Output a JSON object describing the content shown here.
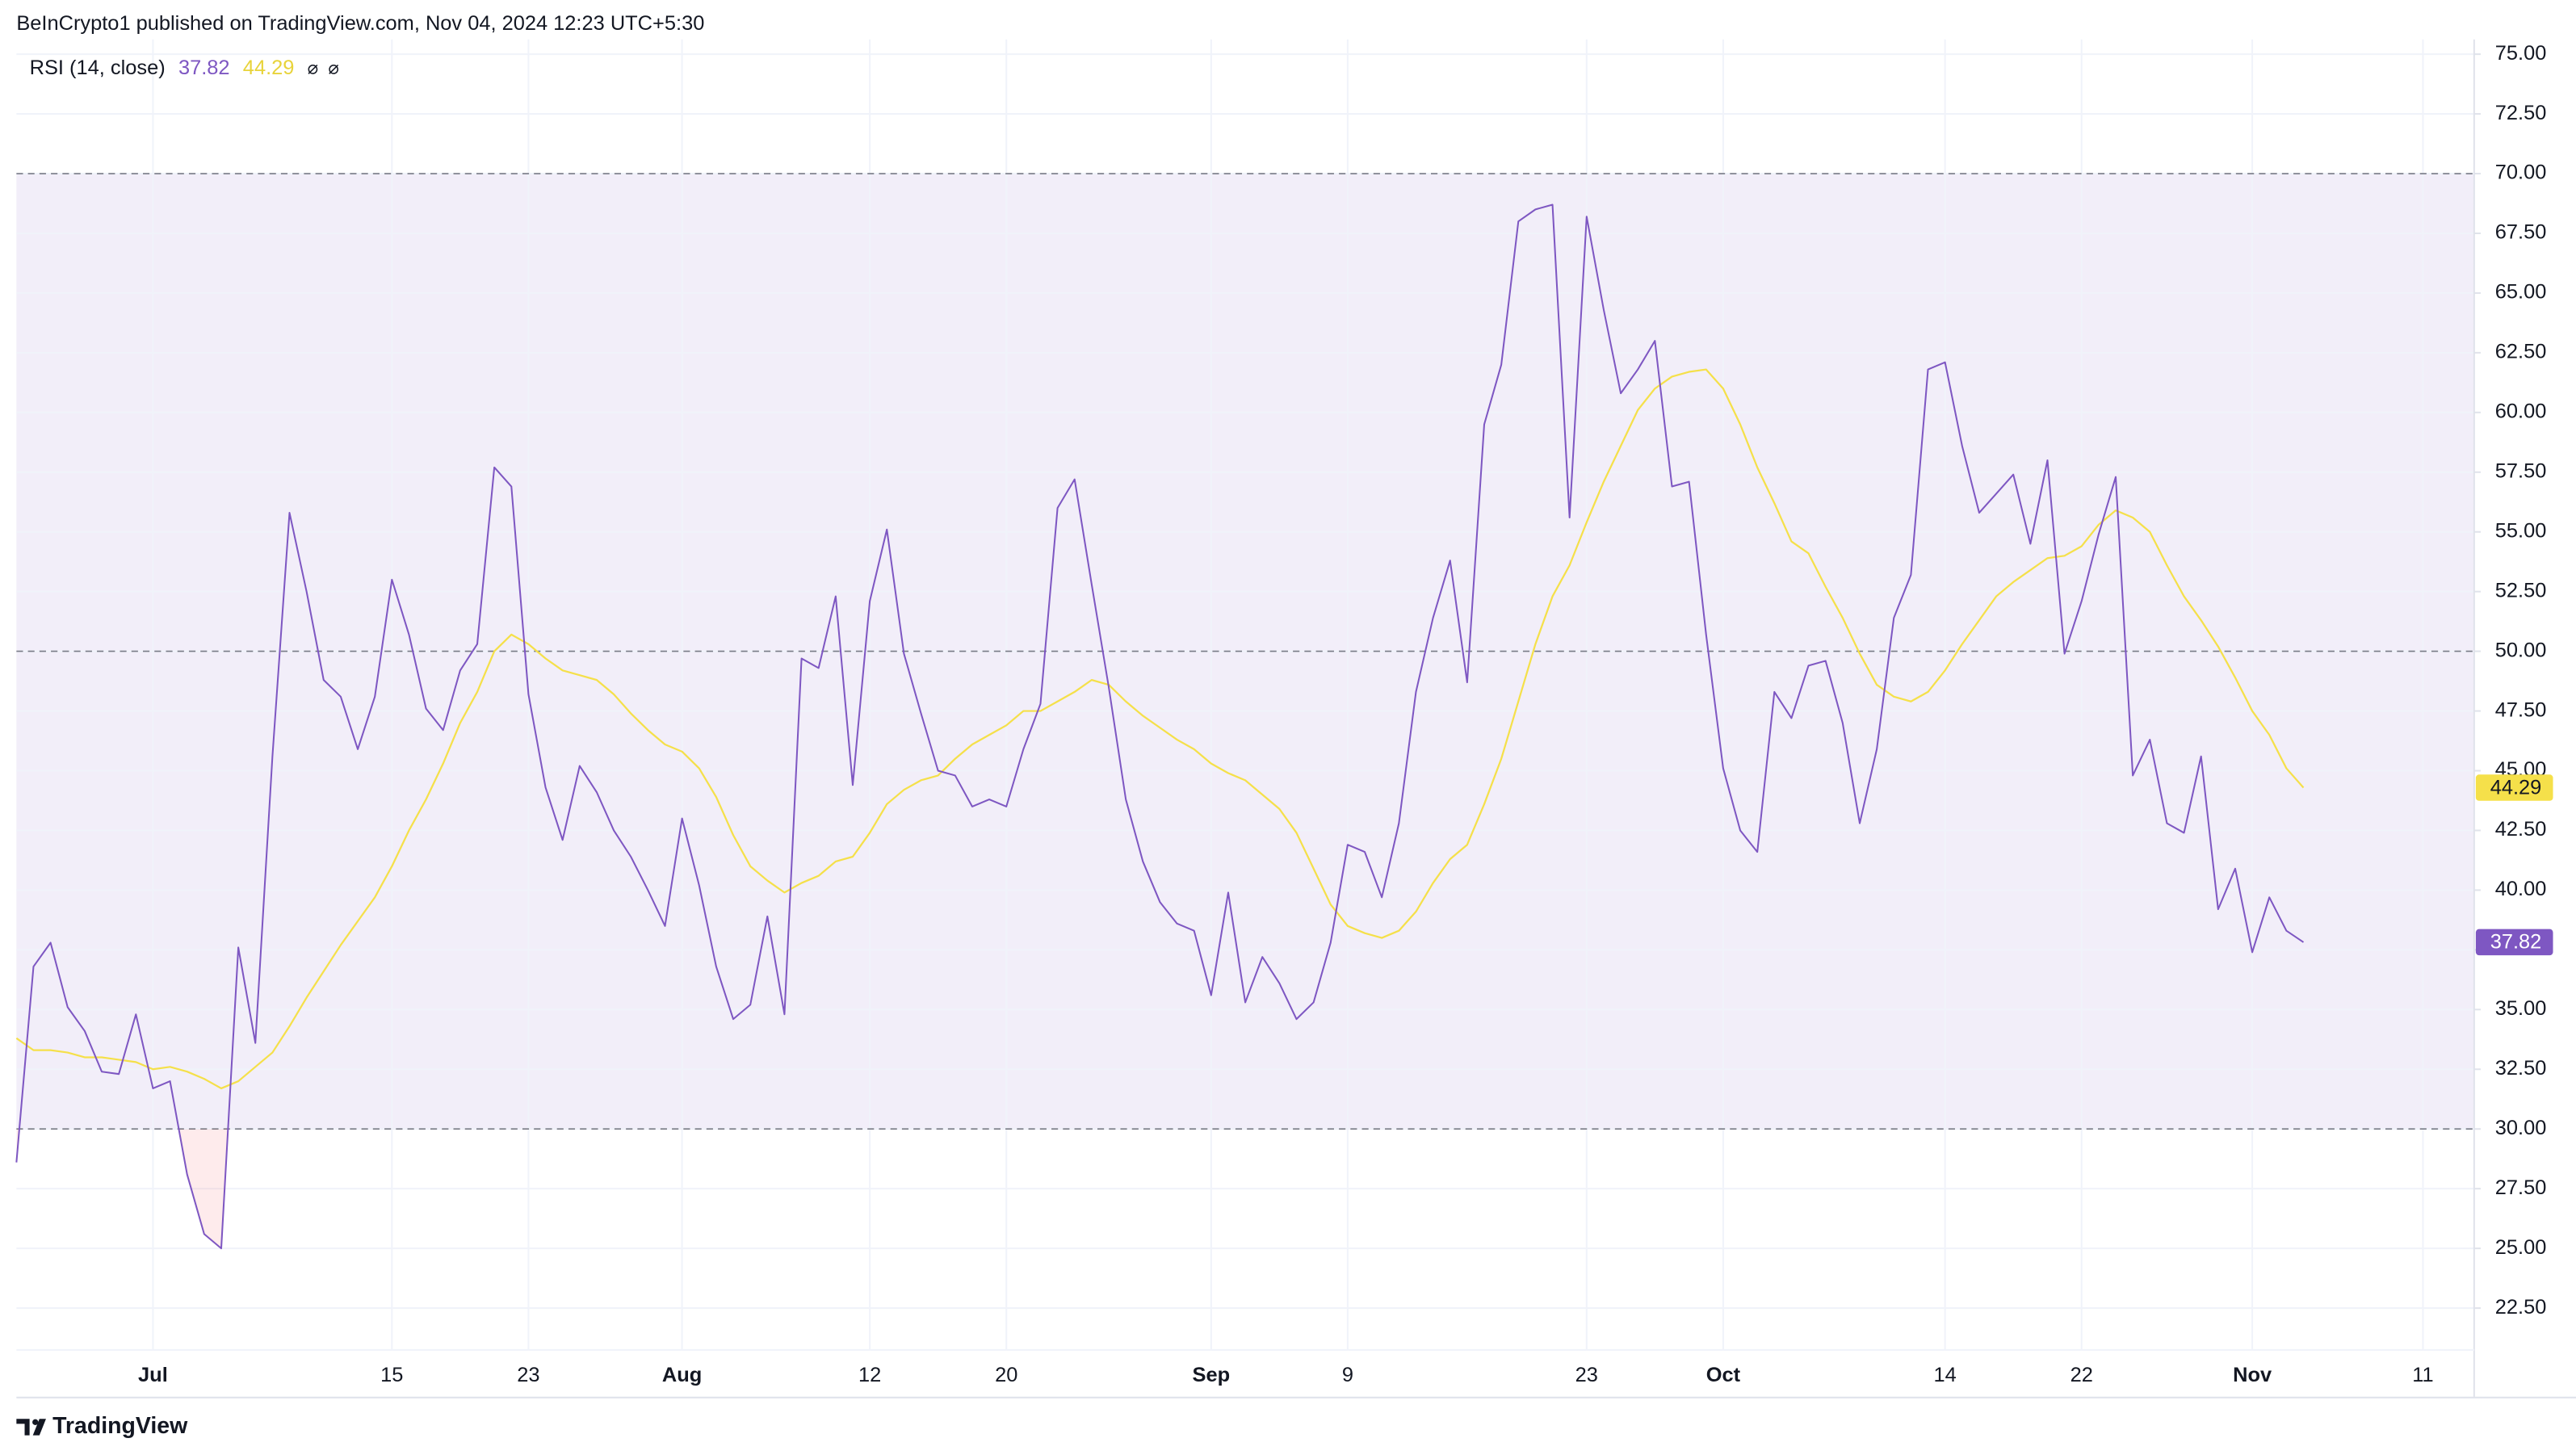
{
  "header": "BeInCrypto1 published on TradingView.com, Nov 04, 2024 12:23 UTC+5:30",
  "brand": "TradingView",
  "chart_data": {
    "type": "line",
    "indicator": "RSI (14, close)",
    "legend_icons": [
      "⌀",
      "⌀"
    ],
    "x": [
      "06-23",
      "06-24",
      "06-25",
      "06-26",
      "06-27",
      "06-28",
      "06-29",
      "06-30",
      "07-01",
      "07-02",
      "07-03",
      "07-04",
      "07-05",
      "07-06",
      "07-07",
      "07-08",
      "07-09",
      "07-10",
      "07-11",
      "07-12",
      "07-13",
      "07-14",
      "07-15",
      "07-16",
      "07-17",
      "07-18",
      "07-19",
      "07-20",
      "07-21",
      "07-22",
      "07-23",
      "07-24",
      "07-25",
      "07-26",
      "07-27",
      "07-28",
      "07-29",
      "07-30",
      "07-31",
      "08-01",
      "08-02",
      "08-03",
      "08-04",
      "08-05",
      "08-06",
      "08-07",
      "08-08",
      "08-09",
      "08-10",
      "08-11",
      "08-12",
      "08-13",
      "08-14",
      "08-15",
      "08-16",
      "08-17",
      "08-18",
      "08-19",
      "08-20",
      "08-21",
      "08-22",
      "08-23",
      "08-24",
      "08-25",
      "08-26",
      "08-27",
      "08-28",
      "08-29",
      "08-30",
      "08-31",
      "09-01",
      "09-02",
      "09-03",
      "09-04",
      "09-05",
      "09-06",
      "09-07",
      "09-08",
      "09-09",
      "09-10",
      "09-11",
      "09-12",
      "09-13",
      "09-14",
      "09-15",
      "09-16",
      "09-17",
      "09-18",
      "09-19",
      "09-20",
      "09-21",
      "09-22",
      "09-23",
      "09-24",
      "09-25",
      "09-26",
      "09-27",
      "09-28",
      "09-29",
      "09-30",
      "10-01",
      "10-02",
      "10-03",
      "10-04",
      "10-05",
      "10-06",
      "10-07",
      "10-08",
      "10-09",
      "10-10",
      "10-11",
      "10-12",
      "10-13",
      "10-14",
      "10-15",
      "10-16",
      "10-17",
      "10-18",
      "10-19",
      "10-20",
      "10-21",
      "10-22",
      "10-23",
      "10-24",
      "10-25",
      "10-26",
      "10-27",
      "10-28",
      "10-29",
      "10-30",
      "10-31",
      "11-01",
      "11-02",
      "11-03",
      "11-04"
    ],
    "series": [
      {
        "color": "#7e57c2",
        "values": [
          28.6,
          36.8,
          37.8,
          35.1,
          34.1,
          32.4,
          32.3,
          34.8,
          31.7,
          32.0,
          28.1,
          25.6,
          25.0,
          37.6,
          33.6,
          45.6,
          55.8,
          52.5,
          48.8,
          48.1,
          45.9,
          48.1,
          53.0,
          50.7,
          47.6,
          46.7,
          49.2,
          50.3,
          57.7,
          56.9,
          48.2,
          44.3,
          42.1,
          45.2,
          44.1,
          42.5,
          41.4,
          40.0,
          38.5,
          43.0,
          40.2,
          36.8,
          34.6,
          35.2,
          38.9,
          34.8,
          49.7,
          49.3,
          52.3,
          44.4,
          52.1,
          55.1,
          49.9,
          47.4,
          45.0,
          44.8,
          43.5,
          43.8,
          43.5,
          45.9,
          47.8,
          56.0,
          57.2,
          52.8,
          48.5,
          43.8,
          41.2,
          39.5,
          38.6,
          38.3,
          35.6,
          39.9,
          35.3,
          37.2,
          36.1,
          34.6,
          35.3,
          37.8,
          41.9,
          41.6,
          39.7,
          42.8,
          48.3,
          51.4,
          53.8,
          48.7,
          59.5,
          62.0,
          68.0,
          68.5,
          68.7,
          55.6,
          68.2,
          64.3,
          60.8,
          61.8,
          63.0,
          56.9,
          57.1,
          50.7,
          45.1,
          42.5,
          41.6,
          48.3,
          47.2,
          49.4,
          49.6,
          47.0,
          42.8,
          45.9,
          51.4,
          53.2,
          61.8,
          62.1,
          58.6,
          55.8,
          56.6,
          57.4,
          54.5,
          58.0,
          49.9,
          52.1,
          54.9,
          57.3,
          44.8,
          46.3,
          42.8,
          42.4,
          45.6,
          39.2,
          40.9,
          37.4,
          39.7,
          38.3,
          37.82
        ]
      },
      {
        "color": "#f5e04a",
        "values": [
          33.8,
          33.3,
          33.3,
          33.2,
          33.0,
          33.0,
          32.9,
          32.8,
          32.5,
          32.6,
          32.4,
          32.1,
          31.7,
          32.0,
          32.6,
          33.2,
          34.3,
          35.5,
          36.6,
          37.7,
          38.7,
          39.7,
          41.0,
          42.5,
          43.8,
          45.3,
          47.0,
          48.3,
          50.0,
          50.7,
          50.3,
          49.7,
          49.2,
          49.0,
          48.8,
          48.2,
          47.4,
          46.7,
          46.1,
          45.8,
          45.1,
          43.9,
          42.3,
          41.0,
          40.4,
          39.9,
          40.3,
          40.6,
          41.2,
          41.4,
          42.4,
          43.6,
          44.2,
          44.6,
          44.8,
          45.5,
          46.1,
          46.5,
          46.9,
          47.5,
          47.5,
          47.9,
          48.3,
          48.8,
          48.6,
          47.9,
          47.3,
          46.8,
          46.3,
          45.9,
          45.3,
          44.9,
          44.6,
          44.0,
          43.4,
          42.4,
          40.9,
          39.4,
          38.5,
          38.2,
          38.0,
          38.3,
          39.1,
          40.3,
          41.3,
          41.9,
          43.6,
          45.5,
          47.9,
          50.3,
          52.3,
          53.6,
          55.4,
          57.1,
          58.6,
          60.1,
          61.0,
          61.5,
          61.7,
          61.8,
          61.0,
          59.5,
          57.7,
          56.2,
          54.6,
          54.1,
          52.7,
          51.4,
          49.9,
          48.6,
          48.1,
          47.9,
          48.3,
          49.2,
          50.3,
          51.3,
          52.3,
          52.9,
          53.4,
          53.9,
          54.0,
          54.4,
          55.3,
          55.9,
          55.6,
          55.0,
          53.6,
          52.3,
          51.3,
          50.2,
          48.9,
          47.5,
          46.5,
          45.1,
          44.29
        ]
      }
    ],
    "bands": {
      "upper": 70,
      "middle": 50,
      "lower": 30
    },
    "xlim": [
      "06-23",
      "11-14"
    ],
    "xticks": [
      {
        "value": "07-01",
        "label": "Jul"
      },
      {
        "value": "07-15",
        "label": "15"
      },
      {
        "value": "07-23",
        "label": "23"
      },
      {
        "value": "08-01",
        "label": "Aug"
      },
      {
        "value": "08-12",
        "label": "12"
      },
      {
        "value": "08-20",
        "label": "20"
      },
      {
        "value": "09-01",
        "label": "Sep"
      },
      {
        "value": "09-09",
        "label": "9"
      },
      {
        "value": "09-23",
        "label": "23"
      },
      {
        "value": "10-01",
        "label": "Oct"
      },
      {
        "value": "10-14",
        "label": "14"
      },
      {
        "value": "10-22",
        "label": "22"
      },
      {
        "value": "11-01",
        "label": "Nov"
      },
      {
        "value": "11-11",
        "label": "11"
      }
    ],
    "ylim": [
      20.75,
      75
    ],
    "yticks": [
      {
        "value": 22.5,
        "label": "22.50"
      },
      {
        "value": 25,
        "label": "25.00"
      },
      {
        "value": 27.5,
        "label": "27.50"
      },
      {
        "value": 30,
        "label": "30.00"
      },
      {
        "value": 32.5,
        "label": "32.50"
      },
      {
        "value": 35,
        "label": "35.00"
      },
      {
        "value": 37.5,
        "label": "37.50"
      },
      {
        "value": 40,
        "label": "40.00"
      },
      {
        "value": 42.5,
        "label": "42.50"
      },
      {
        "value": 45,
        "label": "45.00"
      },
      {
        "value": 47.5,
        "label": "47.50"
      },
      {
        "value": 50,
        "label": "50.00"
      },
      {
        "value": 52.5,
        "label": "52.50"
      },
      {
        "value": 55,
        "label": "55.00"
      },
      {
        "value": 57.5,
        "label": "57.50"
      },
      {
        "value": 60,
        "label": "60.00"
      },
      {
        "value": 62.5,
        "label": "62.50"
      },
      {
        "value": 65,
        "label": "65.00"
      },
      {
        "value": 67.5,
        "label": "67.50"
      },
      {
        "value": 70,
        "label": "70.00"
      },
      {
        "value": 72.5,
        "label": "72.50"
      },
      {
        "value": 75,
        "label": "75.00"
      }
    ],
    "grid": true
  }
}
